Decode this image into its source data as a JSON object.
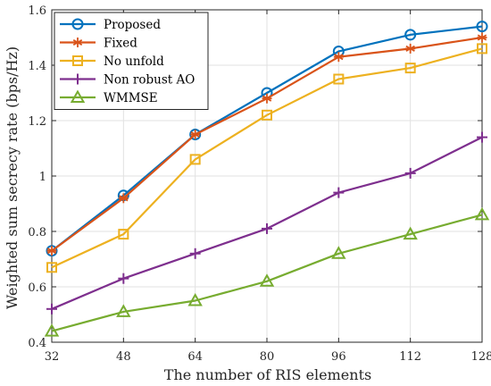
{
  "chart_data": {
    "type": "line",
    "title": "",
    "xlabel": "The number of RIS elements",
    "ylabel": "Weighted sum secrecy rate (bps/Hz)",
    "x": [
      32,
      48,
      64,
      80,
      96,
      112,
      128
    ],
    "xlim": [
      32,
      128
    ],
    "ylim": [
      0.4,
      1.6
    ],
    "xticks": [
      "32",
      "48",
      "64",
      "80",
      "96",
      "112",
      "128"
    ],
    "yticks": [
      "0.4",
      "0.6",
      "0.8",
      "1",
      "1.2",
      "1.4",
      "1.6"
    ],
    "grid": true,
    "legend_position": "top-left",
    "series": [
      {
        "name": "Proposed",
        "color": "#0072BD",
        "marker": "circle",
        "values": [
          0.73,
          0.93,
          1.15,
          1.3,
          1.45,
          1.51,
          1.54
        ]
      },
      {
        "name": "Fixed",
        "color": "#D95319",
        "marker": "asterisk",
        "values": [
          0.73,
          0.92,
          1.15,
          1.28,
          1.43,
          1.46,
          1.5
        ]
      },
      {
        "name": "No unfold",
        "color": "#EDB120",
        "marker": "square",
        "values": [
          0.67,
          0.79,
          1.06,
          1.22,
          1.35,
          1.39,
          1.46
        ]
      },
      {
        "name": "Non robust AO",
        "color": "#7E2F8E",
        "marker": "plus",
        "values": [
          0.52,
          0.63,
          0.72,
          0.81,
          0.94,
          1.01,
          1.14
        ]
      },
      {
        "name": "WMMSE",
        "color": "#77AC30",
        "marker": "triangle",
        "values": [
          0.44,
          0.51,
          0.55,
          0.62,
          0.72,
          0.79,
          0.86
        ]
      }
    ]
  }
}
